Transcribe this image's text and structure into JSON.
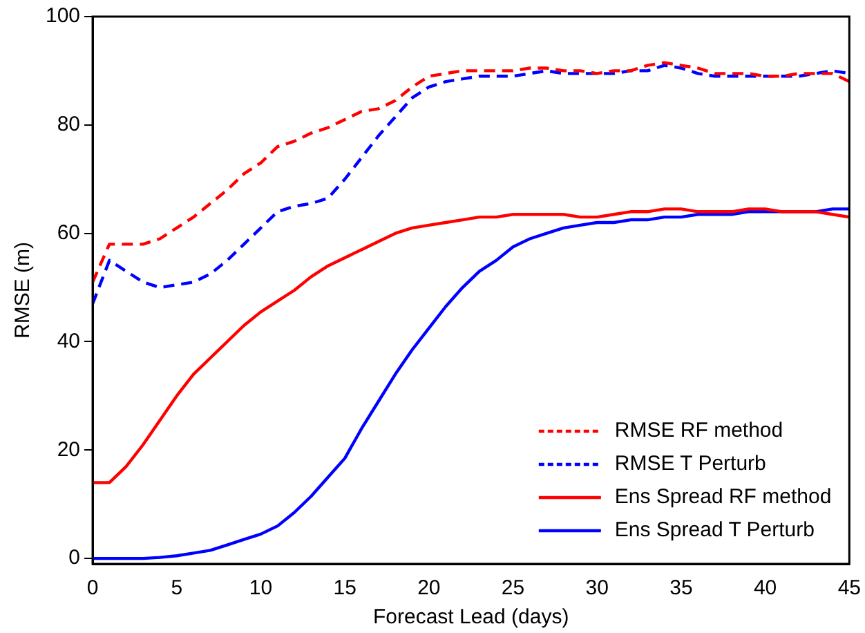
{
  "chart_data": {
    "type": "line",
    "xlabel": "Forecast Lead (days)",
    "ylabel": "RMSE (m)",
    "x": [
      0,
      1,
      2,
      3,
      4,
      5,
      6,
      7,
      8,
      9,
      10,
      11,
      12,
      13,
      14,
      15,
      16,
      17,
      18,
      19,
      20,
      21,
      22,
      23,
      24,
      25,
      26,
      27,
      28,
      29,
      30,
      31,
      32,
      33,
      34,
      35,
      36,
      37,
      38,
      39,
      40,
      41,
      42,
      43,
      44,
      45
    ],
    "series": [
      {
        "name": "RMSE RF method",
        "color": "#ff0000",
        "line_style": "dashed",
        "values": [
          51,
          58,
          58,
          58,
          59,
          61,
          63,
          65.5,
          68,
          71,
          73,
          76,
          77,
          78.5,
          79.5,
          81,
          82.5,
          83,
          84.5,
          87,
          89,
          89.5,
          90,
          90,
          90,
          90,
          90.5,
          90.5,
          90,
          90,
          89.5,
          90,
          90,
          91,
          91.5,
          91,
          90.5,
          89.5,
          89.5,
          89.5,
          89,
          89,
          89.5,
          89.5,
          89.5,
          88
        ]
      },
      {
        "name": "RMSE T Perturb",
        "color": "#0000ff",
        "line_style": "dashed",
        "values": [
          47,
          55,
          53,
          51,
          50,
          50.5,
          51,
          52.5,
          55,
          58,
          61,
          64,
          65,
          65.5,
          66.5,
          70,
          74,
          78,
          81.5,
          85,
          87,
          88,
          88.5,
          89,
          89,
          89,
          89.5,
          90,
          89.5,
          89.5,
          89.5,
          89.5,
          90,
          90,
          91,
          90.5,
          89.5,
          89,
          89,
          89,
          89,
          89,
          89,
          89.5,
          90,
          89.5
        ]
      },
      {
        "name": "Ens Spread RF method",
        "color": "#ff0000",
        "line_style": "solid",
        "values": [
          14,
          14,
          17,
          21,
          25.5,
          30,
          34,
          37,
          40,
          43,
          45.5,
          47.5,
          49.5,
          52,
          54,
          55.5,
          57,
          58.5,
          60,
          61,
          61.5,
          62,
          62.5,
          63,
          63,
          63.5,
          63.5,
          63.5,
          63.5,
          63,
          63,
          63.5,
          64,
          64,
          64.5,
          64.5,
          64,
          64,
          64,
          64.5,
          64.5,
          64,
          64,
          64,
          63.5,
          63
        ]
      },
      {
        "name": "Ens Spread T Perturb",
        "color": "#0000ff",
        "line_style": "solid",
        "values": [
          0,
          0,
          0,
          0,
          0.2,
          0.5,
          1,
          1.5,
          2.5,
          3.5,
          4.5,
          6,
          8.5,
          11.5,
          15,
          18.5,
          24,
          29,
          34,
          38.5,
          42.5,
          46.5,
          50,
          53,
          55,
          57.5,
          59,
          60,
          61,
          61.5,
          62,
          62,
          62.5,
          62.5,
          63,
          63,
          63.5,
          63.5,
          63.5,
          64,
          64,
          64,
          64,
          64,
          64.5,
          64.5
        ]
      }
    ],
    "xlim": [
      0,
      45
    ],
    "xticks": [
      0,
      5,
      10,
      15,
      20,
      25,
      30,
      35,
      40,
      45
    ],
    "ylim": [
      -1,
      100
    ],
    "yticks": [
      0,
      20,
      40,
      60,
      80,
      100
    ],
    "grid": false,
    "legend": "bottom right",
    "marker": "none"
  }
}
